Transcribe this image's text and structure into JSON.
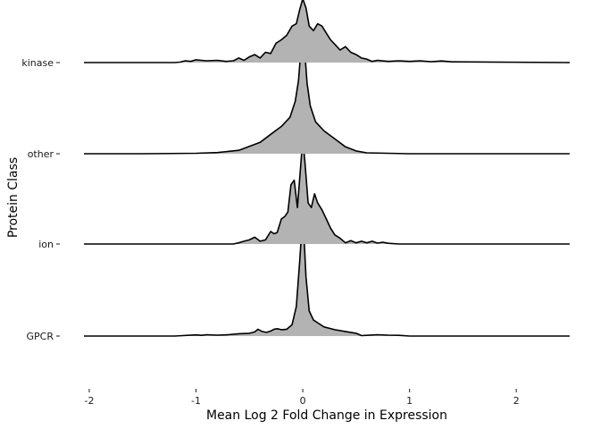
{
  "chart_data": {
    "type": "ridgeline",
    "title": "",
    "xlabel": "Mean Log 2 Fold Change in Expression",
    "ylabel": "Protein Class",
    "xlim": [
      -2.05,
      2.5
    ],
    "x_ticks": [
      -2,
      -1,
      0,
      1,
      2
    ],
    "x_tick_labels": [
      "-2",
      "-1",
      "0",
      "1",
      "2"
    ],
    "grid": false,
    "legend": "none",
    "fill_color": "#b3b3b3",
    "line_color": "#000000",
    "categories": [
      "GPCR",
      "ion",
      "other",
      "kinase"
    ],
    "series": [
      {
        "name": "GPCR",
        "x": [
          -2.05,
          -1.2,
          -1.0,
          -0.95,
          -0.9,
          -0.8,
          -0.7,
          -0.6,
          -0.5,
          -0.45,
          -0.42,
          -0.38,
          -0.34,
          -0.3,
          -0.27,
          -0.24,
          -0.2,
          -0.15,
          -0.1,
          -0.06,
          -0.03,
          -0.01,
          0.0,
          0.01,
          0.03,
          0.06,
          0.1,
          0.15,
          0.2,
          0.3,
          0.4,
          0.5,
          0.55,
          0.6,
          0.7,
          0.8,
          0.9,
          1.0,
          1.1,
          2.5
        ],
        "y": [
          0.0,
          0.0,
          0.05,
          0.03,
          0.06,
          0.04,
          0.06,
          0.1,
          0.12,
          0.18,
          0.3,
          0.2,
          0.16,
          0.22,
          0.3,
          0.32,
          0.28,
          0.3,
          0.5,
          1.3,
          3.2,
          4.6,
          4.7,
          4.5,
          2.6,
          1.1,
          0.7,
          0.55,
          0.4,
          0.28,
          0.2,
          0.12,
          0.02,
          0.03,
          0.06,
          0.04,
          0.03,
          0.0,
          0.0,
          0.0
        ]
      },
      {
        "name": "ion",
        "x": [
          -2.05,
          -0.65,
          -0.6,
          -0.55,
          -0.5,
          -0.45,
          -0.4,
          -0.35,
          -0.3,
          -0.27,
          -0.24,
          -0.2,
          -0.17,
          -0.14,
          -0.11,
          -0.08,
          -0.05,
          -0.02,
          0.0,
          0.02,
          0.05,
          0.08,
          0.11,
          0.14,
          0.18,
          0.22,
          0.26,
          0.3,
          0.35,
          0.4,
          0.45,
          0.5,
          0.55,
          0.6,
          0.65,
          0.7,
          0.75,
          0.8,
          0.9,
          2.5
        ],
        "y": [
          0.0,
          0.0,
          0.05,
          0.12,
          0.18,
          0.3,
          0.12,
          0.18,
          0.55,
          0.45,
          0.5,
          1.1,
          1.2,
          1.4,
          2.6,
          2.8,
          1.6,
          3.4,
          4.6,
          3.6,
          1.8,
          1.6,
          2.2,
          1.8,
          1.5,
          1.1,
          0.7,
          0.4,
          0.25,
          0.05,
          0.15,
          0.05,
          0.12,
          0.05,
          0.12,
          0.04,
          0.08,
          0.03,
          0.0,
          0.0
        ]
      },
      {
        "name": "other",
        "x": [
          -2.05,
          -1.5,
          -1.0,
          -0.8,
          -0.6,
          -0.4,
          -0.3,
          -0.2,
          -0.12,
          -0.07,
          -0.04,
          -0.02,
          0.0,
          0.02,
          0.04,
          0.07,
          0.12,
          0.2,
          0.3,
          0.4,
          0.5,
          0.6,
          0.8,
          1.0,
          2.5
        ],
        "y": [
          0.0,
          0.0,
          0.02,
          0.05,
          0.15,
          0.5,
          0.85,
          1.2,
          1.6,
          2.3,
          3.2,
          4.4,
          4.9,
          4.4,
          3.1,
          2.1,
          1.4,
          1.0,
          0.65,
          0.3,
          0.12,
          0.04,
          0.02,
          0.0,
          0.0
        ]
      },
      {
        "name": "kinase",
        "x": [
          -2.05,
          -1.2,
          -1.15,
          -1.1,
          -1.05,
          -1.0,
          -0.95,
          -0.9,
          -0.8,
          -0.72,
          -0.65,
          -0.6,
          -0.55,
          -0.5,
          -0.45,
          -0.4,
          -0.35,
          -0.3,
          -0.25,
          -0.2,
          -0.15,
          -0.1,
          -0.06,
          -0.03,
          0.0,
          0.03,
          0.06,
          0.1,
          0.14,
          0.18,
          0.22,
          0.26,
          0.3,
          0.35,
          0.4,
          0.45,
          0.5,
          0.55,
          0.6,
          0.65,
          0.7,
          0.8,
          0.9,
          1.0,
          1.1,
          1.2,
          1.3,
          1.4,
          2.5
        ],
        "y": [
          0.0,
          0.0,
          0.02,
          0.08,
          0.05,
          0.12,
          0.1,
          0.08,
          0.1,
          0.05,
          0.08,
          0.2,
          0.1,
          0.25,
          0.35,
          0.2,
          0.45,
          0.4,
          0.85,
          1.0,
          1.2,
          1.6,
          1.7,
          2.3,
          2.8,
          2.4,
          1.6,
          1.4,
          1.7,
          1.6,
          1.3,
          1.0,
          0.8,
          0.55,
          0.7,
          0.45,
          0.35,
          0.2,
          0.15,
          0.05,
          0.1,
          0.05,
          0.08,
          0.05,
          0.08,
          0.04,
          0.07,
          0.03,
          0.0
        ]
      }
    ]
  }
}
